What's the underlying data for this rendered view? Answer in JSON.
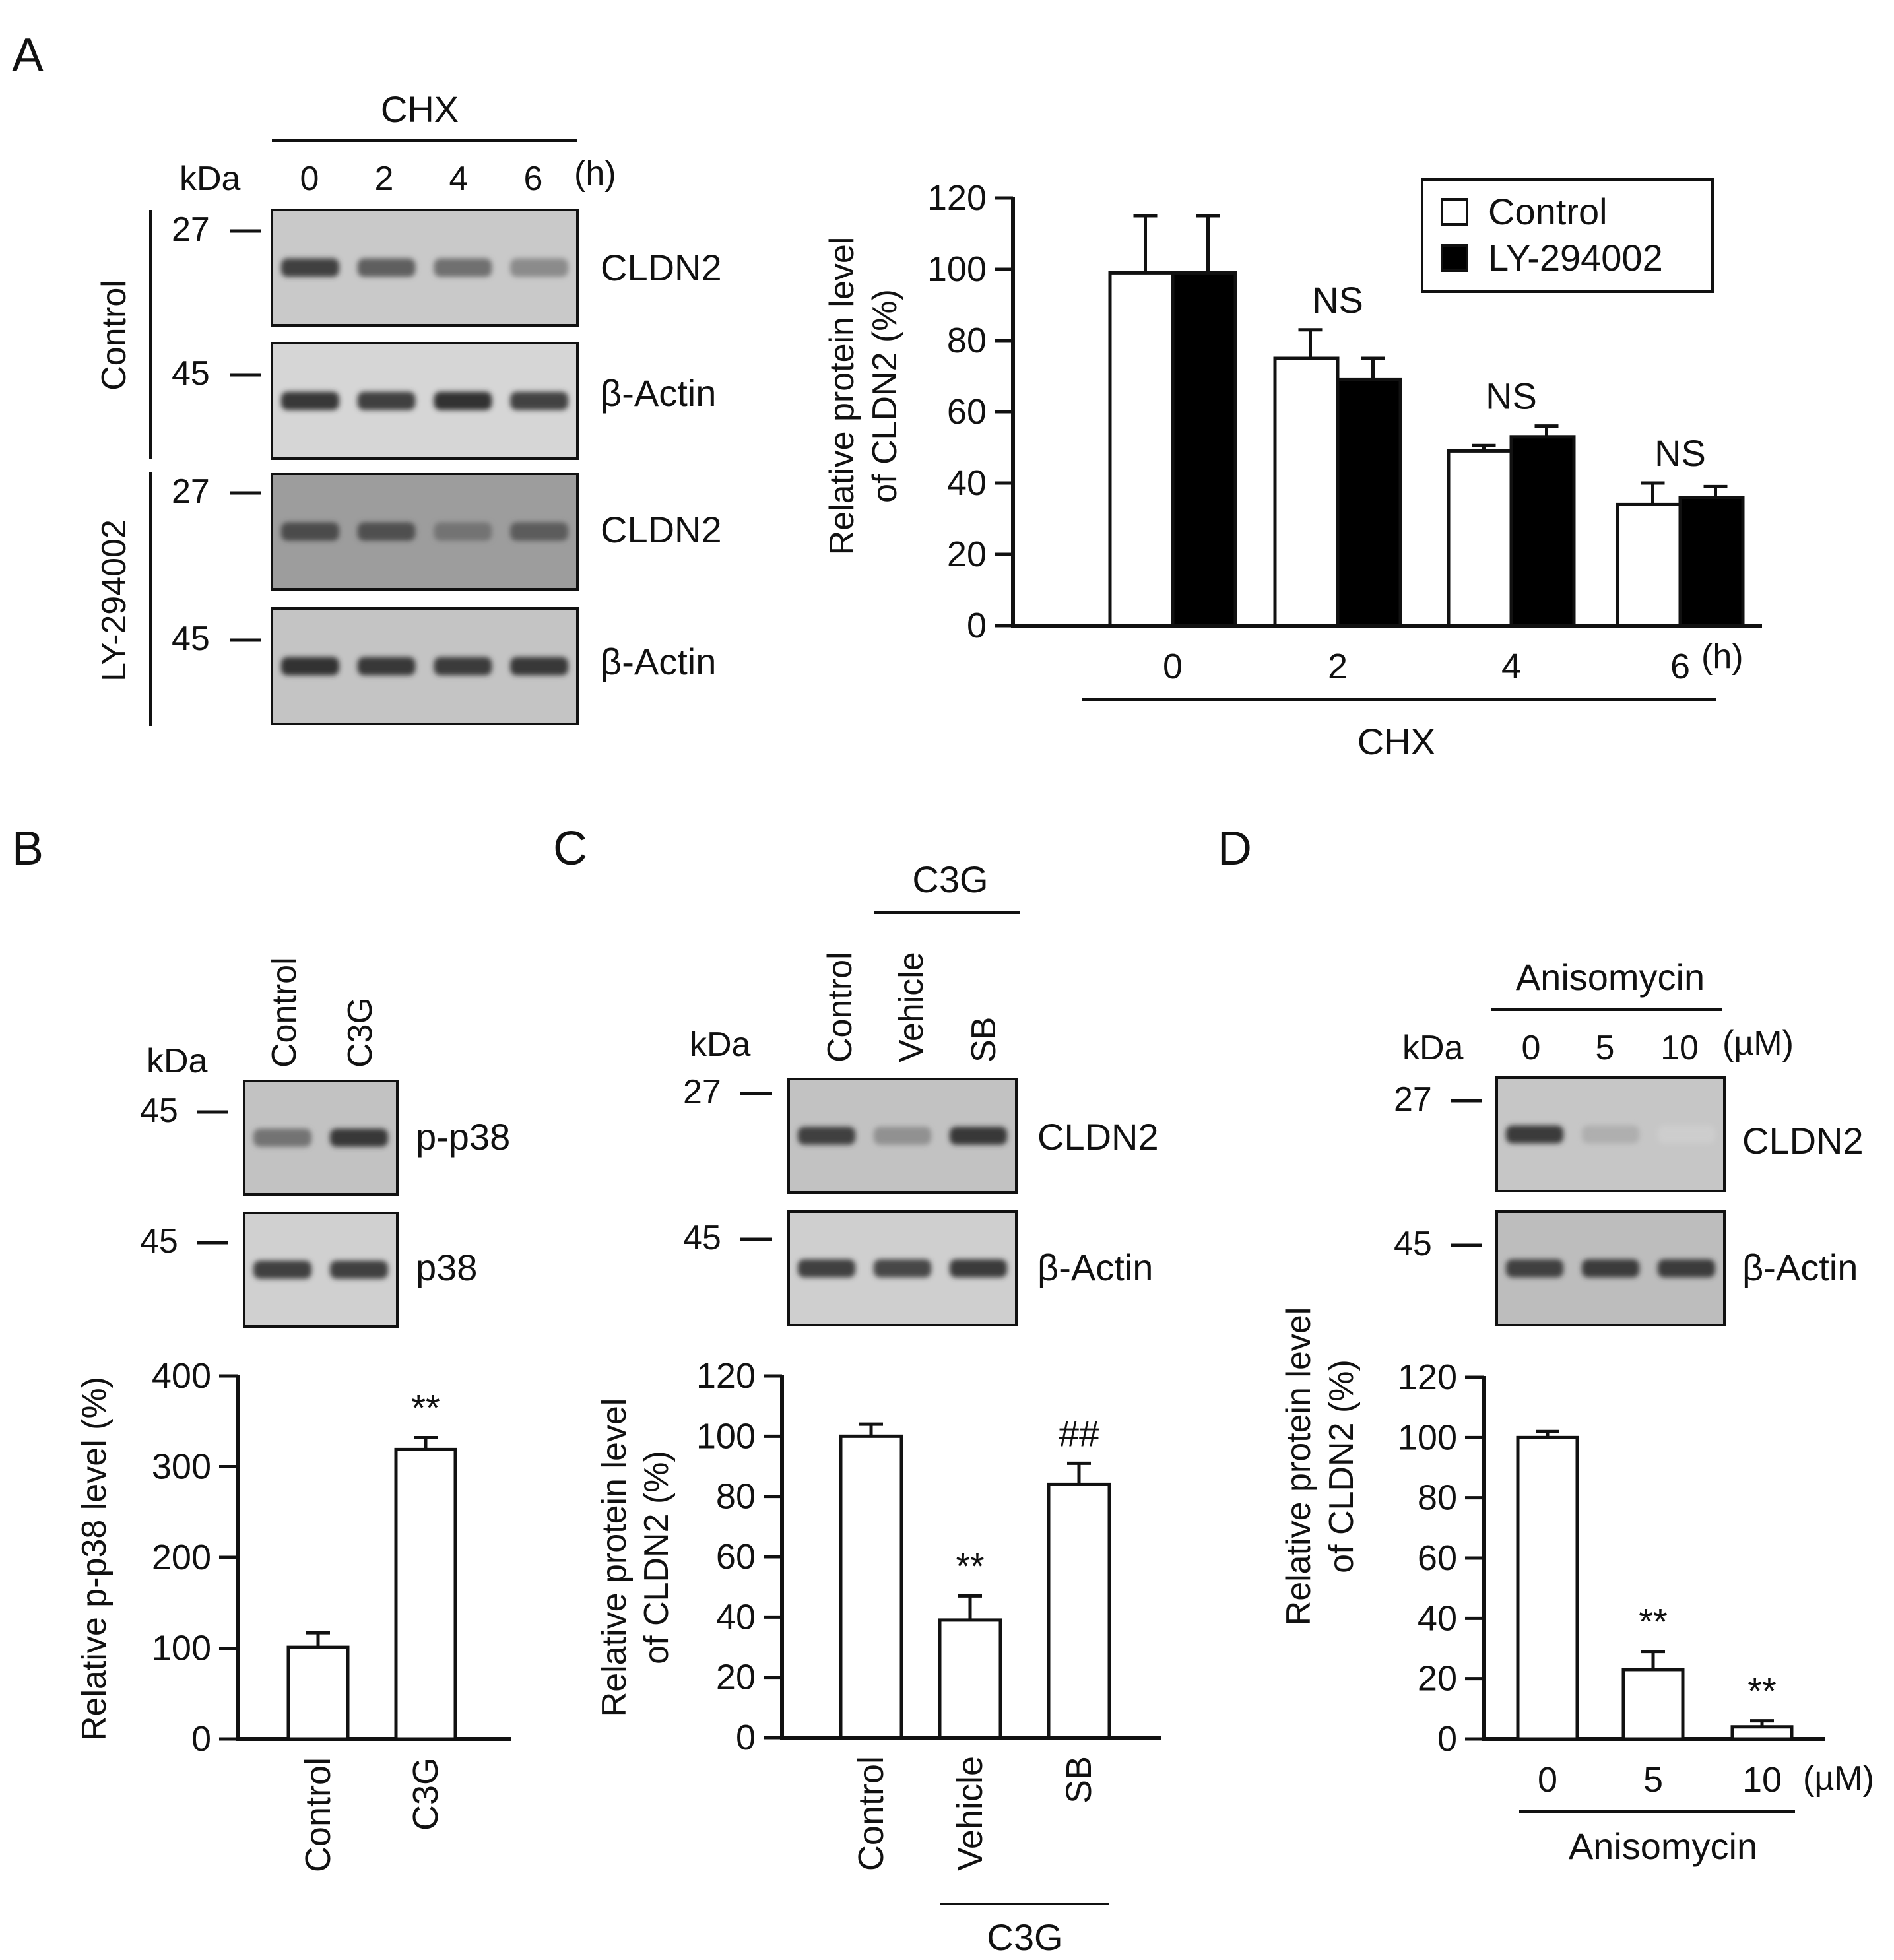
{
  "panels": {
    "a": {
      "letter": "A",
      "blot": {
        "treatment": "CHX",
        "unit": "kDa",
        "times": [
          "0",
          "2",
          "4",
          "6"
        ],
        "time_unit": "(h)",
        "groups": [
          {
            "label": "Control",
            "rows": [
              {
                "label": "CLDN2",
                "marker": "27",
                "intensities": [
                  0.85,
                  0.7,
                  0.62,
                  0.48
                ]
              },
              {
                "label": "β-Actin",
                "marker": "45",
                "intensities": [
                  0.9,
                  0.86,
                  0.92,
                  0.84
                ]
              }
            ]
          },
          {
            "label": "LY-294002",
            "rows": [
              {
                "label": "CLDN2",
                "marker": "27",
                "intensities": [
                  0.8,
                  0.78,
                  0.6,
                  0.72
                ]
              },
              {
                "label": "β-Actin",
                "marker": "45",
                "intensities": [
                  0.92,
                  0.9,
                  0.88,
                  0.9
                ]
              }
            ]
          }
        ]
      },
      "chart_data": {
        "type": "bar",
        "categories": [
          "0",
          "2",
          "4",
          "6"
        ],
        "category_unit": "(h)",
        "xgroup_label": "CHX",
        "ylabel_line1": "Relative protein level",
        "ylabel_line2": "of CLDN2  (%)",
        "ylim": [
          0,
          120
        ],
        "yticks": [
          0,
          20,
          40,
          60,
          80,
          100,
          120
        ],
        "series": [
          {
            "name": "Control",
            "fill": "#ffffff",
            "values": [
              99,
              75,
              49,
              34
            ],
            "errors": [
              16,
              8,
              1.5,
              6
            ]
          },
          {
            "name": "LY-294002",
            "fill": "#000000",
            "values": [
              99,
              69,
              53,
              36
            ],
            "errors": [
              16,
              6,
              3,
              3
            ]
          }
        ],
        "annotations": [
          {
            "category_index": 1,
            "text": "NS"
          },
          {
            "category_index": 2,
            "text": "NS"
          },
          {
            "category_index": 3,
            "text": "NS"
          }
        ],
        "legend_position": "top-right",
        "grid": false
      }
    },
    "b": {
      "letter": "B",
      "blot": {
        "unit": "kDa",
        "lanes": [
          "Control",
          "C3G"
        ],
        "rows": [
          {
            "label": "p-p38",
            "marker": "45",
            "intensities": [
              0.6,
              0.9
            ]
          },
          {
            "label": "p38",
            "marker": "45",
            "intensities": [
              0.85,
              0.85
            ]
          }
        ]
      },
      "chart_data": {
        "type": "bar",
        "categories": [
          "Control",
          "C3G"
        ],
        "values": [
          101,
          319
        ],
        "errors": [
          16,
          13
        ],
        "ylabel": "Relative p-p38 level (%)",
        "ylim": [
          0,
          400
        ],
        "yticks": [
          0,
          100,
          200,
          300,
          400
        ],
        "annotations": [
          {
            "category_index": 1,
            "text": "**"
          }
        ],
        "grid": false
      }
    },
    "c": {
      "letter": "C",
      "blot": {
        "unit": "kDa",
        "group_label": "C3G",
        "lanes": [
          "Control",
          "Vehicle",
          "SB"
        ],
        "rows": [
          {
            "label": "CLDN2",
            "marker": "27",
            "intensities": [
              0.85,
              0.45,
              0.9
            ]
          },
          {
            "label": "β-Actin",
            "marker": "45",
            "intensities": [
              0.85,
              0.82,
              0.88
            ]
          }
        ]
      },
      "chart_data": {
        "type": "bar",
        "categories": [
          "Control",
          "Vehicle",
          "SB"
        ],
        "group_label": "C3G",
        "values": [
          100,
          39,
          84
        ],
        "errors": [
          4,
          8,
          7
        ],
        "ylabel_line1": "Relative protein level",
        "ylabel_line2": "of CLDN2 (%)",
        "ylim": [
          0,
          120
        ],
        "yticks": [
          0,
          20,
          40,
          60,
          80,
          100,
          120
        ],
        "annotations": [
          {
            "category_index": 1,
            "text": "**"
          },
          {
            "category_index": 2,
            "text": "##"
          }
        ],
        "grid": false
      }
    },
    "d": {
      "letter": "D",
      "blot": {
        "treatment": "Anisomycin",
        "unit": "kDa",
        "lanes": [
          "0",
          "5",
          "10"
        ],
        "lane_unit": "(µM)",
        "rows": [
          {
            "label": "CLDN2",
            "marker": "27",
            "intensities": [
              0.88,
              0.3,
              0.15
            ]
          },
          {
            "label": "β-Actin",
            "marker": "45",
            "intensities": [
              0.85,
              0.88,
              0.88
            ]
          }
        ]
      },
      "chart_data": {
        "type": "bar",
        "categories": [
          "0",
          "5",
          "10"
        ],
        "category_unit": "(µM)",
        "xgroup_label": "Anisomycin",
        "values": [
          100,
          23,
          4
        ],
        "errors": [
          2,
          6,
          2
        ],
        "ylabel_line1": "Relative protein level",
        "ylabel_line2": "of CLDN2 (%)",
        "ylim": [
          0,
          120
        ],
        "yticks": [
          0,
          20,
          40,
          60,
          80,
          100,
          120
        ],
        "annotations": [
          {
            "category_index": 1,
            "text": "**"
          },
          {
            "category_index": 2,
            "text": "**"
          }
        ],
        "grid": false
      }
    }
  }
}
